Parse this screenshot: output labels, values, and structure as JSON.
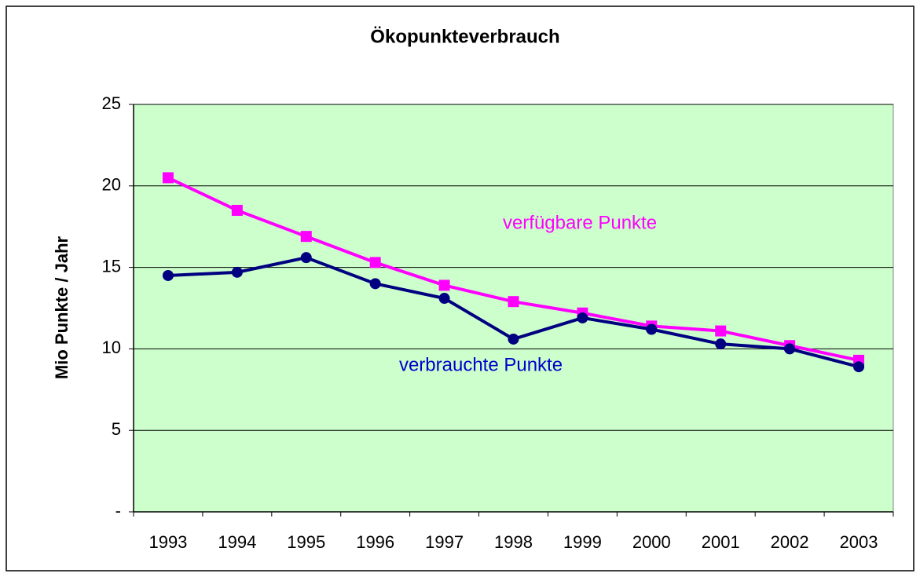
{
  "chart_data": {
    "type": "line",
    "title": "Ökopunkteverbrauch",
    "ylabel": "Mio Punkte / Jahr",
    "categories": [
      "1993",
      "1994",
      "1995",
      "1996",
      "1997",
      "1998",
      "1999",
      "2000",
      "2001",
      "2002",
      "2003"
    ],
    "series": [
      {
        "name": "verfügbare Punkte",
        "color": "#ff00ff",
        "marker": "square",
        "values": [
          20.5,
          18.5,
          16.9,
          15.3,
          13.9,
          12.9,
          12.2,
          11.4,
          11.1,
          10.2,
          9.3
        ]
      },
      {
        "name": "verbrauchte Punkte",
        "color": "#000080",
        "marker": "circle",
        "values": [
          14.5,
          14.7,
          15.6,
          14.0,
          13.1,
          10.6,
          11.9,
          11.2,
          10.3,
          10.0,
          8.9
        ]
      }
    ],
    "ylim": [
      0,
      25
    ],
    "yticks": [
      {
        "value": 0,
        "label": "-"
      },
      5,
      10,
      15,
      20,
      25
    ],
    "grid": true,
    "plot_background": "#ccffcc"
  }
}
